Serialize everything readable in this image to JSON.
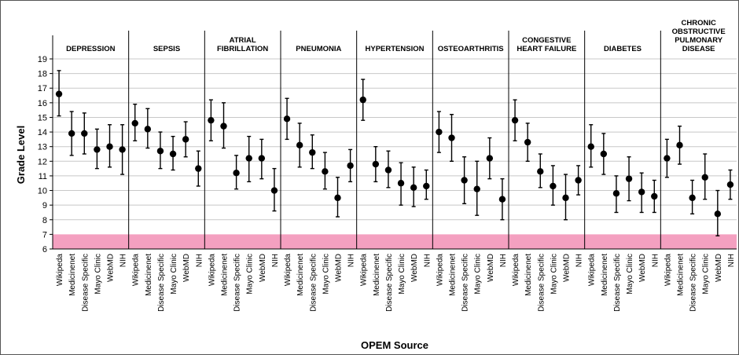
{
  "chart_data": {
    "type": "scatter",
    "style": "error-bar panels",
    "xlabel": "OPEM Source",
    "ylabel": "Grade Level",
    "ylim": [
      6,
      19
    ],
    "yticks": [
      6,
      7,
      8,
      9,
      10,
      11,
      12,
      13,
      14,
      15,
      16,
      17,
      18,
      19
    ],
    "grid": "horizontal",
    "sources": [
      "Wikipeda",
      "Medicinenet",
      "Disease Specific",
      "Mayo Clinic",
      "WebMD",
      "NIH"
    ],
    "target_band": {
      "ymin": 6,
      "ymax": 7,
      "color": "#f4a0c0"
    },
    "colors": {
      "marker": "#000000",
      "band": "#f4a0c0",
      "grid": "#c8c8c8"
    },
    "panels": [
      {
        "title": [
          "DEPRESSION"
        ],
        "means": [
          16.6,
          13.9,
          13.9,
          12.8,
          13.0,
          12.8
        ],
        "lower": [
          15.1,
          12.4,
          12.5,
          11.5,
          11.6,
          11.1
        ],
        "upper": [
          18.2,
          15.4,
          15.3,
          14.2,
          14.5,
          14.5
        ]
      },
      {
        "title": [
          "SEPSIS"
        ],
        "means": [
          14.6,
          14.2,
          12.7,
          12.5,
          13.5,
          11.5
        ],
        "lower": [
          13.4,
          12.9,
          11.5,
          11.4,
          12.3,
          10.3
        ],
        "upper": [
          15.9,
          15.6,
          14.0,
          13.7,
          14.7,
          12.7
        ]
      },
      {
        "title": [
          "ATRIAL",
          "FIBRILLATION"
        ],
        "means": [
          14.8,
          14.4,
          11.2,
          12.2,
          12.2,
          10.0
        ],
        "lower": [
          13.4,
          12.9,
          10.1,
          10.6,
          10.8,
          8.6
        ],
        "upper": [
          16.2,
          16.0,
          12.4,
          13.7,
          13.5,
          11.5
        ]
      },
      {
        "title": [
          "PNEUMONIA"
        ],
        "means": [
          14.9,
          13.1,
          12.6,
          11.3,
          9.5,
          11.7
        ],
        "lower": [
          13.5,
          11.6,
          11.5,
          10.1,
          8.2,
          10.6
        ],
        "upper": [
          16.3,
          14.6,
          13.8,
          12.6,
          10.9,
          12.8
        ]
      },
      {
        "title": [
          "HYPERTENSION"
        ],
        "means": [
          16.2,
          11.8,
          11.4,
          10.5,
          10.2,
          10.3
        ],
        "lower": [
          14.8,
          10.6,
          10.2,
          9.0,
          8.9,
          9.4
        ],
        "upper": [
          17.6,
          13.0,
          12.7,
          11.9,
          11.6,
          11.4
        ]
      },
      {
        "title": [
          "OSTEOARTHRITIS"
        ],
        "means": [
          14.0,
          13.6,
          10.7,
          10.1,
          12.2,
          9.4
        ],
        "lower": [
          12.6,
          12.0,
          9.1,
          8.3,
          10.8,
          8.0
        ],
        "upper": [
          15.4,
          15.2,
          12.3,
          12.0,
          13.6,
          10.8
        ]
      },
      {
        "title": [
          "CONGESTIVE",
          "HEART FAILURE"
        ],
        "means": [
          14.8,
          13.3,
          11.3,
          10.3,
          9.5,
          10.7
        ],
        "lower": [
          13.4,
          12.0,
          10.2,
          9.0,
          8.0,
          9.7
        ],
        "upper": [
          16.2,
          14.6,
          12.5,
          11.7,
          11.1,
          11.7
        ]
      },
      {
        "title": [
          "DIABETES"
        ],
        "means": [
          13.0,
          12.5,
          9.8,
          10.8,
          9.9,
          9.6
        ],
        "lower": [
          11.6,
          11.1,
          8.5,
          9.3,
          8.5,
          8.5
        ],
        "upper": [
          14.5,
          13.9,
          11.0,
          12.3,
          11.2,
          10.7
        ]
      },
      {
        "title": [
          "CHRONIC",
          "OBSTRUCTIVE",
          "PULMONARY",
          "DISEASE"
        ],
        "means": [
          12.2,
          13.1,
          9.5,
          10.9,
          8.4,
          10.4
        ],
        "lower": [
          10.9,
          11.8,
          8.4,
          9.4,
          6.9,
          9.4
        ],
        "upper": [
          13.5,
          14.4,
          10.7,
          12.5,
          10.0,
          11.4
        ]
      }
    ]
  }
}
